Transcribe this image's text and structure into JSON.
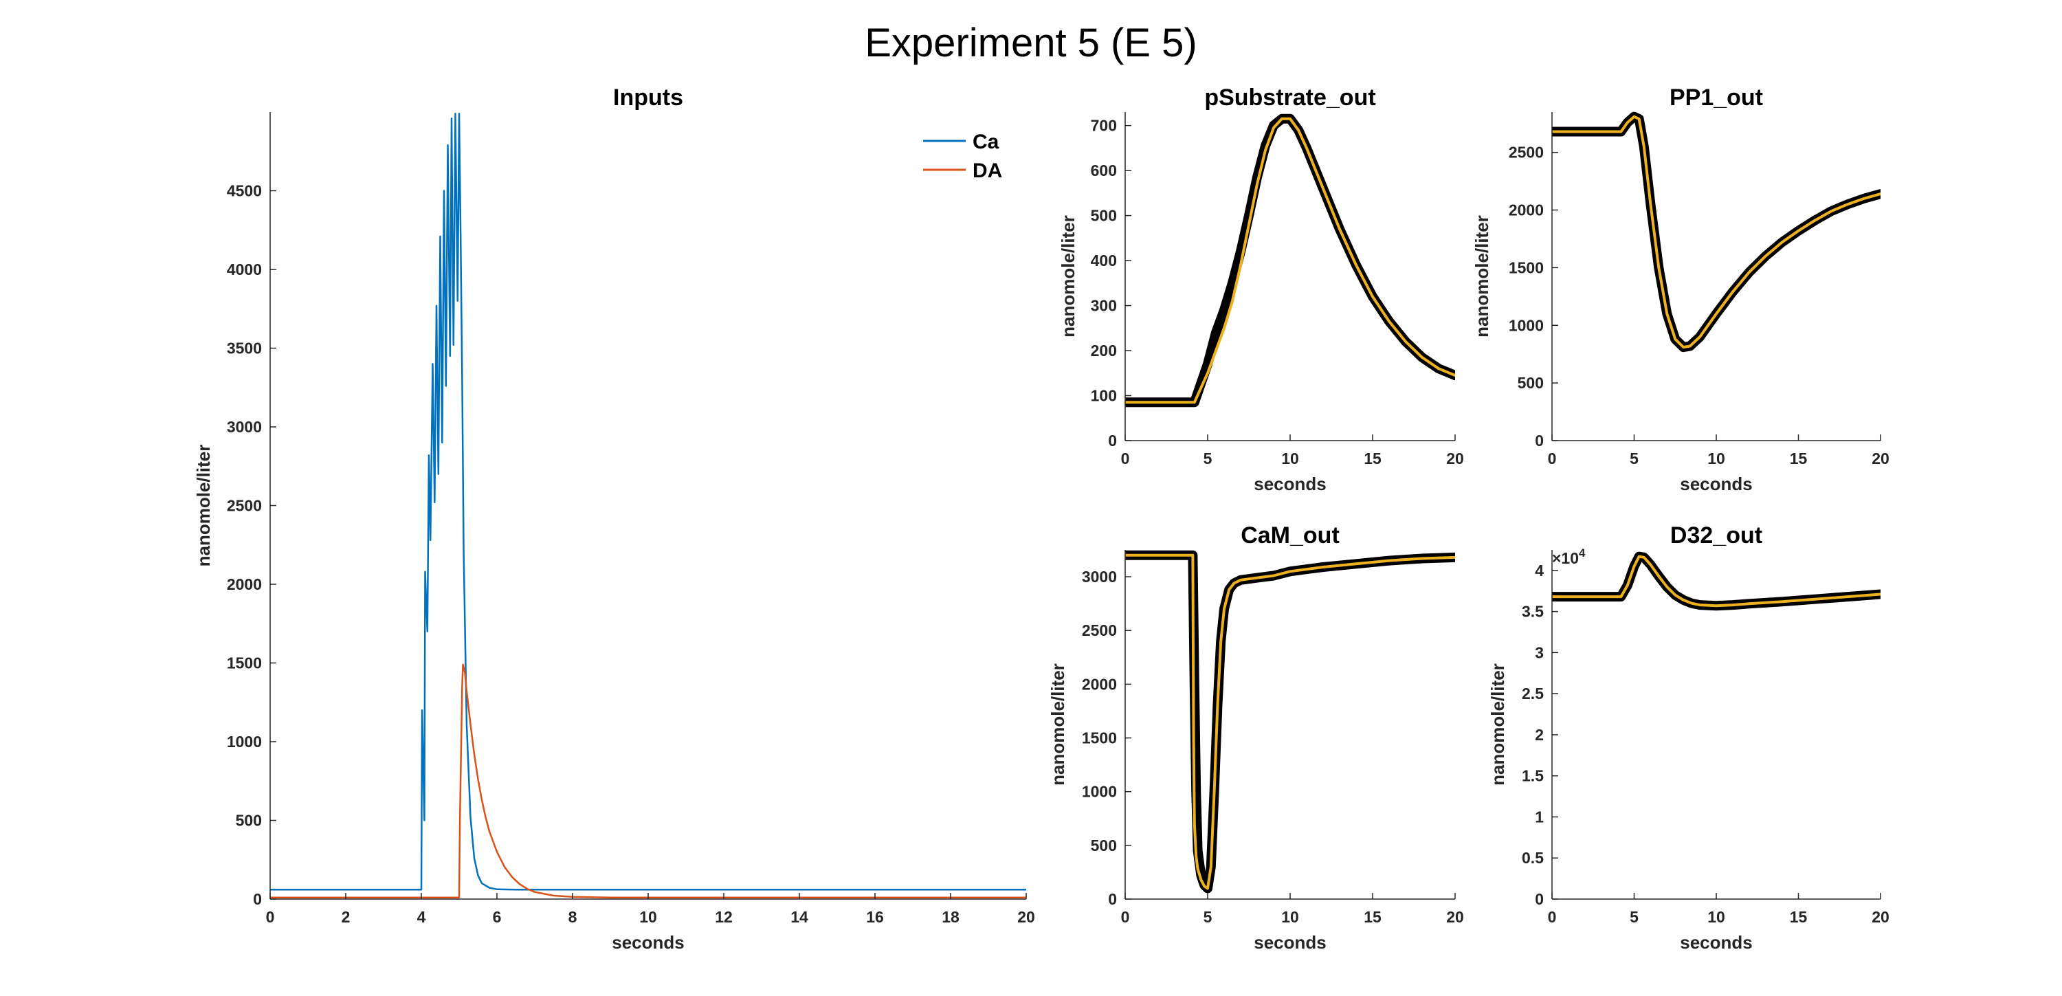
{
  "figure": {
    "title": "Experiment 5  (E 5)"
  },
  "chart_data": [
    {
      "id": "inputs",
      "type": "line",
      "title": "Inputs",
      "xlabel": "seconds",
      "ylabel": "nanomole/liter",
      "xlim": [
        0,
        20
      ],
      "ylim": [
        0,
        5000
      ],
      "xticks": [
        0,
        2,
        4,
        6,
        8,
        10,
        12,
        14,
        16,
        18,
        20
      ],
      "yticks": [
        0,
        500,
        1000,
        1500,
        2000,
        2500,
        3000,
        3500,
        4000,
        4500
      ],
      "legend": "top-right",
      "series": [
        {
          "name": "Ca",
          "color": "#0072BD",
          "x": [
            0,
            4.0,
            4.02,
            4.08,
            4.1,
            4.16,
            4.2,
            4.24,
            4.3,
            4.35,
            4.4,
            4.45,
            4.5,
            4.55,
            4.6,
            4.65,
            4.7,
            4.76,
            4.8,
            4.85,
            4.9,
            4.96,
            5.0,
            5.04,
            5.08,
            5.12,
            5.2,
            5.3,
            5.4,
            5.5,
            5.6,
            5.8,
            6.0,
            6.5,
            7,
            20
          ],
          "y": [
            60,
            60,
            1200,
            500,
            2080,
            1700,
            2820,
            2280,
            3400,
            2520,
            3770,
            2700,
            4210,
            2900,
            4500,
            3260,
            4790,
            3450,
            4960,
            3520,
            4990,
            3800,
            4990,
            4200,
            3300,
            2200,
            1100,
            520,
            260,
            150,
            100,
            72,
            62,
            60,
            60,
            60
          ]
        },
        {
          "name": "DA",
          "color": "#D95319",
          "x": [
            0,
            5.0,
            5.02,
            5.08,
            5.1,
            5.15,
            5.2,
            5.3,
            5.4,
            5.5,
            5.6,
            5.7,
            5.8,
            6.0,
            6.2,
            6.4,
            6.6,
            6.8,
            7.0,
            7.5,
            8.0,
            9.0,
            10,
            20
          ],
          "y": [
            10,
            10,
            500,
            1350,
            1490,
            1440,
            1320,
            1110,
            920,
            760,
            630,
            520,
            430,
            300,
            205,
            140,
            95,
            65,
            45,
            22,
            14,
            10,
            10,
            10
          ]
        }
      ]
    },
    {
      "id": "psubstrate",
      "type": "line",
      "title": "pSubstrate_out",
      "xlabel": "seconds",
      "ylabel": "nanomole/liter",
      "xlim": [
        0,
        20
      ],
      "ylim": [
        0,
        730
      ],
      "xticks": [
        0,
        5,
        10,
        15,
        20
      ],
      "yticks": [
        0,
        100,
        200,
        300,
        400,
        500,
        600,
        700
      ],
      "series": [
        {
          "color": "#000000",
          "x": [
            0,
            4.2,
            5.0,
            5.5,
            6.0,
            6.5,
            7.0,
            7.5,
            8.0,
            8.5,
            9.0,
            9.5,
            10.0,
            10.5,
            11.0,
            12.0,
            13.0,
            14.0,
            15.0,
            16.0,
            17.0,
            18.0,
            19.0,
            20.0
          ],
          "y": [
            85,
            85,
            170,
            240,
            290,
            350,
            420,
            500,
            585,
            655,
            700,
            715,
            715,
            690,
            650,
            560,
            470,
            390,
            320,
            265,
            220,
            185,
            160,
            145
          ]
        },
        {
          "color": "#EDB120",
          "x": [
            0,
            4.2,
            5.0,
            5.5,
            6.0,
            6.5,
            7.0,
            7.5,
            8.0,
            8.5,
            9.0,
            9.5,
            10.0,
            10.5,
            11.0,
            12.0,
            13.0,
            14.0,
            15.0,
            16.0,
            17.0,
            18.0,
            19.0,
            20.0
          ],
          "y": [
            85,
            85,
            150,
            200,
            250,
            310,
            390,
            480,
            570,
            645,
            695,
            715,
            715,
            690,
            650,
            560,
            470,
            390,
            320,
            265,
            220,
            185,
            160,
            145
          ]
        }
      ]
    },
    {
      "id": "pp1",
      "type": "line",
      "title": "PP1_out",
      "xlabel": "seconds",
      "ylabel": "nanomole/liter",
      "xlim": [
        0,
        20
      ],
      "ylim": [
        0,
        2850
      ],
      "xticks": [
        0,
        5,
        10,
        15,
        20
      ],
      "yticks": [
        0,
        500,
        1000,
        1500,
        2000,
        2500
      ],
      "series": [
        {
          "color": "#000000",
          "x": [
            0,
            4.2,
            4.6,
            5.0,
            5.3,
            5.6,
            6.0,
            6.5,
            7.0,
            7.5,
            8.0,
            8.4,
            9.0,
            10.0,
            11.0,
            12.0,
            13.0,
            14.0,
            15.0,
            16.0,
            17.0,
            18.0,
            19.0,
            20.0
          ],
          "y": [
            2680,
            2680,
            2760,
            2810,
            2790,
            2550,
            2050,
            1500,
            1100,
            880,
            810,
            820,
            900,
            1100,
            1290,
            1460,
            1600,
            1720,
            1820,
            1910,
            1990,
            2050,
            2100,
            2140
          ]
        },
        {
          "color": "#EDB120",
          "x": [
            0,
            4.2,
            4.6,
            5.0,
            5.3,
            5.6,
            6.0,
            6.5,
            7.0,
            7.5,
            8.0,
            8.4,
            9.0,
            10.0,
            11.0,
            12.0,
            13.0,
            14.0,
            15.0,
            16.0,
            17.0,
            18.0,
            19.0,
            20.0
          ],
          "y": [
            2680,
            2680,
            2760,
            2810,
            2790,
            2550,
            2050,
            1500,
            1100,
            880,
            810,
            820,
            900,
            1100,
            1290,
            1460,
            1600,
            1720,
            1820,
            1910,
            1990,
            2050,
            2100,
            2140
          ]
        }
      ]
    },
    {
      "id": "cam",
      "type": "line",
      "title": "CaM_out",
      "xlabel": "seconds",
      "ylabel": "nanomole/liter",
      "xlim": [
        0,
        20
      ],
      "ylim": [
        0,
        3250
      ],
      "xticks": [
        0,
        5,
        10,
        15,
        20
      ],
      "yticks": [
        0,
        500,
        1000,
        1500,
        2000,
        2500,
        3000
      ],
      "series": [
        {
          "color": "#000000",
          "x": [
            0,
            4.1,
            4.2,
            4.3,
            4.4,
            4.6,
            4.8,
            5.0,
            5.2,
            5.4,
            5.6,
            5.8,
            6.0,
            6.3,
            6.6,
            7.0,
            8.0,
            9.0,
            10,
            12,
            14,
            16,
            18,
            20
          ],
          "y": [
            3200,
            3200,
            2000,
            1000,
            450,
            220,
            130,
            100,
            300,
            1000,
            1800,
            2400,
            2700,
            2880,
            2940,
            2970,
            2990,
            3010,
            3050,
            3090,
            3120,
            3150,
            3170,
            3180
          ]
        },
        {
          "color": "#EDB120",
          "x": [
            0,
            4.1,
            4.15,
            4.2,
            4.3,
            4.4,
            4.6,
            4.8,
            5.0,
            5.2,
            5.4,
            5.6,
            5.8,
            6.0,
            6.3,
            6.6,
            7.0,
            8.0,
            9.0,
            10,
            12,
            14,
            16,
            18,
            20
          ],
          "y": [
            3200,
            3200,
            1500,
            700,
            400,
            280,
            180,
            120,
            100,
            300,
            1000,
            1800,
            2400,
            2700,
            2880,
            2940,
            2970,
            2990,
            3010,
            3050,
            3090,
            3120,
            3150,
            3170,
            3180
          ]
        }
      ]
    },
    {
      "id": "d32",
      "type": "line",
      "title": "D32_out",
      "xlabel": "seconds",
      "ylabel": "nanomole/liter",
      "xlim": [
        0,
        20
      ],
      "ylim": [
        0,
        42500
      ],
      "xticks": [
        0,
        5,
        10,
        15,
        20
      ],
      "yticks": [
        0,
        5000,
        10000,
        15000,
        20000,
        25000,
        30000,
        35000,
        40000
      ],
      "ytick_labels": [
        "0",
        "0.5",
        "1",
        "1.5",
        "2",
        "2.5",
        "3",
        "3.5",
        "4"
      ],
      "exponent_label": "10",
      "exponent_power": "4",
      "series": [
        {
          "color": "#000000",
          "x": [
            0,
            4.2,
            4.6,
            5.0,
            5.3,
            5.6,
            6.0,
            6.5,
            7.0,
            7.5,
            8.0,
            8.5,
            9.0,
            10,
            11,
            12,
            14,
            16,
            18,
            20
          ],
          "y": [
            36800,
            36800,
            38200,
            40500,
            41700,
            41600,
            40700,
            39300,
            38000,
            37000,
            36400,
            36000,
            35800,
            35700,
            35800,
            35950,
            36200,
            36500,
            36800,
            37100
          ]
        },
        {
          "color": "#EDB120",
          "x": [
            0,
            4.2,
            4.6,
            5.0,
            5.3,
            5.6,
            6.0,
            6.5,
            7.0,
            7.5,
            8.0,
            8.5,
            9.0,
            10,
            11,
            12,
            14,
            16,
            18,
            20
          ],
          "y": [
            36800,
            36800,
            38200,
            40500,
            41700,
            41600,
            40700,
            39300,
            38000,
            37000,
            36400,
            36000,
            35800,
            35700,
            35800,
            35950,
            36200,
            36500,
            36800,
            37100
          ]
        }
      ]
    }
  ]
}
